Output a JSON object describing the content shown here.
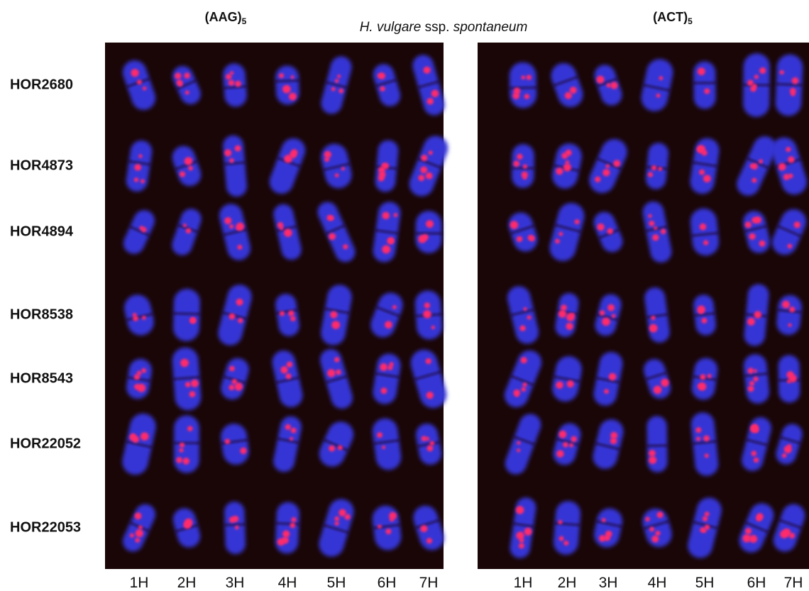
{
  "title": {
    "part1": "H. vulgare",
    "part2": "ssp.",
    "part3": "spontaneum"
  },
  "rows": [
    "HOR2680",
    "HOR4873",
    "HOR4894",
    "HOR8538",
    "HOR8543",
    "HOR22052",
    "HOR22053"
  ],
  "panels": [
    {
      "probe": "(AAG)",
      "probe_sub": "5",
      "columns": [
        "1H",
        "2H",
        "3H",
        "4H",
        "5H",
        "6H",
        "7H"
      ]
    },
    {
      "probe": "(ACT)",
      "probe_sub": "5",
      "columns": [
        "1H",
        "2H",
        "3H",
        "4H",
        "5H",
        "6H",
        "7H"
      ]
    }
  ]
}
